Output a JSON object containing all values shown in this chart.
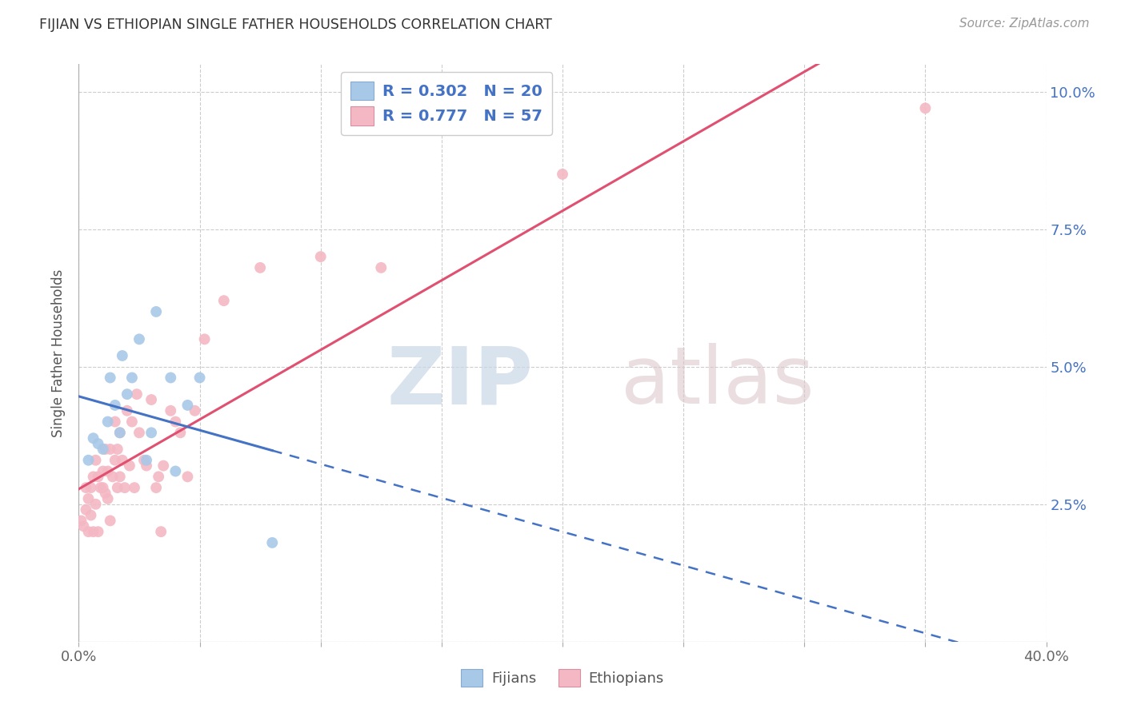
{
  "title": "FIJIAN VS ETHIOPIAN SINGLE FATHER HOUSEHOLDS CORRELATION CHART",
  "source": "Source: ZipAtlas.com",
  "ylabel_label": "Single Father Households",
  "xlim": [
    0.0,
    0.4
  ],
  "ylim": [
    0.0,
    0.105
  ],
  "xticks": [
    0.0,
    0.05,
    0.1,
    0.15,
    0.2,
    0.25,
    0.3,
    0.35,
    0.4
  ],
  "yticks": [
    0.0,
    0.025,
    0.05,
    0.075,
    0.1
  ],
  "background_color": "#ffffff",
  "grid_color": "#cccccc",
  "fijian_color": "#a8c8e8",
  "ethiopian_color": "#f4b8c4",
  "fijian_R": 0.302,
  "fijian_N": 20,
  "ethiopian_R": 0.777,
  "ethiopian_N": 57,
  "fijian_line_color": "#4472C4",
  "ethiopian_line_color": "#e05070",
  "label_color": "#4472C4",
  "fijian_x": [
    0.004,
    0.006,
    0.008,
    0.01,
    0.012,
    0.013,
    0.015,
    0.017,
    0.018,
    0.02,
    0.022,
    0.025,
    0.028,
    0.03,
    0.032,
    0.038,
    0.04,
    0.045,
    0.05,
    0.08
  ],
  "fijian_y": [
    0.033,
    0.037,
    0.036,
    0.035,
    0.04,
    0.048,
    0.043,
    0.038,
    0.052,
    0.045,
    0.048,
    0.055,
    0.033,
    0.038,
    0.06,
    0.048,
    0.031,
    0.043,
    0.048,
    0.018
  ],
  "ethiopian_x": [
    0.001,
    0.002,
    0.003,
    0.003,
    0.004,
    0.004,
    0.005,
    0.005,
    0.006,
    0.006,
    0.007,
    0.007,
    0.008,
    0.008,
    0.009,
    0.01,
    0.01,
    0.011,
    0.011,
    0.012,
    0.012,
    0.013,
    0.013,
    0.014,
    0.015,
    0.015,
    0.016,
    0.016,
    0.017,
    0.017,
    0.018,
    0.019,
    0.02,
    0.021,
    0.022,
    0.023,
    0.024,
    0.025,
    0.027,
    0.028,
    0.03,
    0.032,
    0.033,
    0.034,
    0.035,
    0.038,
    0.04,
    0.042,
    0.045,
    0.048,
    0.052,
    0.06,
    0.075,
    0.1,
    0.125,
    0.2,
    0.35
  ],
  "ethiopian_y": [
    0.022,
    0.021,
    0.024,
    0.028,
    0.02,
    0.026,
    0.023,
    0.028,
    0.02,
    0.03,
    0.025,
    0.033,
    0.02,
    0.03,
    0.028,
    0.028,
    0.031,
    0.027,
    0.035,
    0.026,
    0.031,
    0.022,
    0.035,
    0.03,
    0.033,
    0.04,
    0.028,
    0.035,
    0.03,
    0.038,
    0.033,
    0.028,
    0.042,
    0.032,
    0.04,
    0.028,
    0.045,
    0.038,
    0.033,
    0.032,
    0.044,
    0.028,
    0.03,
    0.02,
    0.032,
    0.042,
    0.04,
    0.038,
    0.03,
    0.042,
    0.055,
    0.062,
    0.068,
    0.07,
    0.068,
    0.085,
    0.097
  ],
  "fij_line_solid_end": 0.08,
  "watermark_zip_color": "#c8d8e8",
  "watermark_atlas_color": "#dcc8cc"
}
